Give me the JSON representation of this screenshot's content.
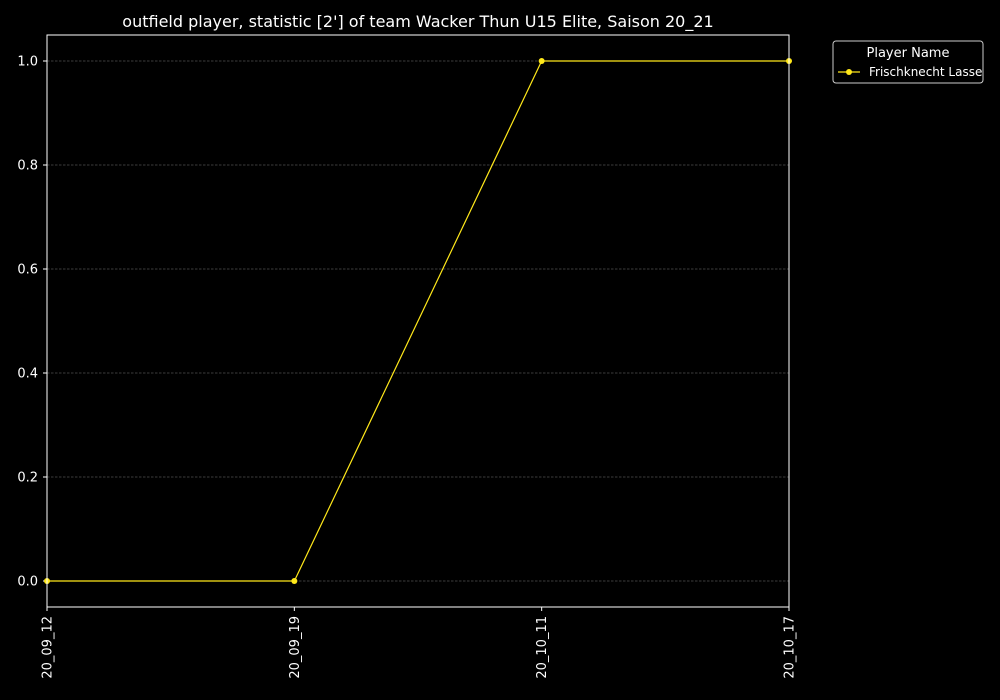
{
  "chart_data": {
    "type": "line",
    "title": "outfield player, statistic [2'] of team Wacker Thun U15 Elite, Saison 20_21",
    "xlabel": "",
    "ylabel": "",
    "categories": [
      "20_09_12",
      "20_09_19",
      "20_10_11",
      "20_10_17"
    ],
    "series": [
      {
        "name": "Frischknecht Lasse",
        "values": [
          0.0,
          0.0,
          1.0,
          1.0
        ],
        "color": "#ffe81a"
      }
    ],
    "ylim": [
      -0.05,
      1.05
    ],
    "yticks": [
      0.0,
      0.2,
      0.4,
      0.6,
      0.8,
      1.0
    ],
    "ytick_labels": [
      "0.0",
      "0.2",
      "0.4",
      "0.6",
      "0.8",
      "1.0"
    ],
    "grid": "horizontal dashed",
    "background": "#000000",
    "axis_color": "#ffffff",
    "legend": {
      "title": "Player Name",
      "placement": "outside-top-right"
    }
  }
}
